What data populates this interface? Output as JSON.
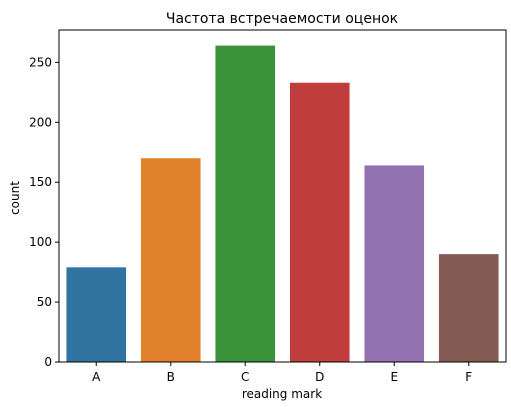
{
  "chart_data": {
    "type": "bar",
    "title": "Частота встречаемости оценок",
    "xlabel": "reading mark",
    "ylabel": "count",
    "categories": [
      "A",
      "B",
      "C",
      "D",
      "E",
      "F"
    ],
    "values": [
      79,
      170,
      264,
      233,
      164,
      90
    ],
    "colors": [
      "#3274a1",
      "#e1812c",
      "#3a923a",
      "#c03d3e",
      "#9372b2",
      "#845b53"
    ],
    "yticks": [
      0,
      50,
      100,
      150,
      200,
      250
    ],
    "ylim": [
      0,
      277
    ],
    "grid": false,
    "legend": "none"
  }
}
